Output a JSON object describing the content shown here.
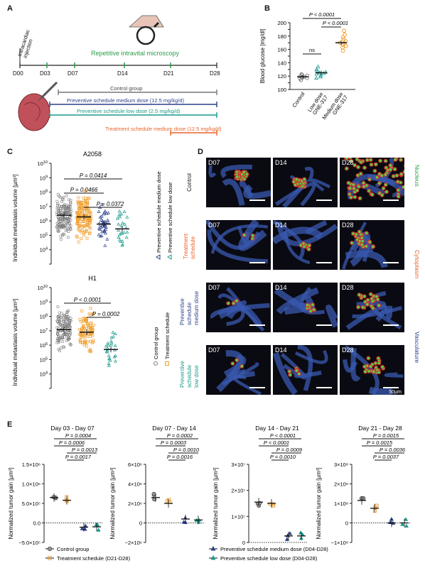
{
  "panels": {
    "a": "A",
    "b": "B",
    "c": "C",
    "d": "D",
    "e": "E"
  },
  "panelA": {
    "intracardiac": "Intracardiac\ninjection",
    "repetitive": "Repetitive intravital microscopy",
    "days": [
      "D00",
      "D03",
      "D07",
      "D14",
      "D21",
      "D28"
    ],
    "control": "Control group",
    "prev_med": "Preventive schedule medium dose (12.5 mg/kg/d)",
    "prev_low": "Preventive schedule low dose (2.5 mg/kg/d)",
    "treat": "Treatment schedule medium dose (12.5 mg/kg/d)"
  },
  "panelB": {
    "ylabel": "Blood glucose [mg/dl]",
    "ticks": [
      "100",
      "110",
      "120",
      "130",
      "140",
      "150",
      "160",
      "170",
      "180",
      "190",
      "200"
    ],
    "cats": [
      "Control",
      "Low dose\nGNE-317",
      "Medium dose\nGNE-317"
    ],
    "p1": "P < 0.0001",
    "p2": "P < 0.0001",
    "ns": "ns",
    "colors": [
      "#777777",
      "#2aa198",
      "#f0a030"
    ]
  },
  "panelC": {
    "ylabel": "Individual metastasis volume [µm³]",
    "a2058": {
      "title": "A2058",
      "p": [
        "P = 0.0414",
        "P = 0.0466",
        "P = 0.0372"
      ]
    },
    "h1": {
      "title": "H1",
      "p": [
        "P < 0.0001",
        "P = 0.0002"
      ]
    },
    "legend": [
      "Control group",
      "Treatment schedule",
      "Preventive schedule medium dose",
      "Preventive schedule low dose"
    ]
  },
  "panelD": {
    "days": [
      "D07",
      "D14",
      "D28"
    ],
    "rows": [
      "Control",
      "Treatment\nschedule",
      "Preventive\nschedule\nmedium dose",
      "Preventive\nschedule\nlow dose"
    ],
    "nucleus": "Nucleus",
    "cytoplasm": "Cytoplasm",
    "vasculature": "Vasculature",
    "scalebar": "50µm"
  },
  "panelE": {
    "ylabel": "Normalized tumor gain [µm³]",
    "plots": [
      {
        "title": "Day 03 - Day 07",
        "p": [
          "P = 0.0004",
          "P = 0.0006",
          "P = 0.0013",
          "P = 0.0017"
        ],
        "ticks": [
          "1.5×10⁶",
          "1.0×10⁶",
          "5.0×10⁵",
          "0.0",
          "−5.0×10⁵"
        ]
      },
      {
        "title": "Day 07 - Day 14",
        "p": [
          "P = 0.0002",
          "P = 0.0003",
          "P = 0.0010",
          "P = 0.0016"
        ],
        "ticks": [
          "6×10⁶",
          "4×10⁶",
          "2×10⁶",
          "0",
          "−2×10⁶"
        ]
      },
      {
        "title": "Day 14 - Day 21",
        "p": [
          "P < 0.0001",
          "P < 0.0001",
          "P = 0.0009",
          "P = 0.0010"
        ],
        "ticks": [
          "3×10⁷",
          "2×10⁷",
          "1×10⁷",
          "0"
        ]
      },
      {
        "title": "Day 21 - Day 28",
        "p": [
          "P = 0.0015",
          "P = 0.0015",
          "P = 0.0036",
          "P = 0.0037"
        ],
        "ticks": [
          "3×10⁸",
          "2×10⁸",
          "1×10⁸",
          "0",
          "−1×10⁸"
        ]
      }
    ],
    "legend": [
      "Control group",
      "Treatment schedule (D21-D28)",
      "Preventive schedule medium dose (D04-D28)",
      "Preventive schedule low dose (D04-D28)"
    ]
  },
  "chart_data": [
    {
      "type": "scatter",
      "title": "",
      "ylabel": "Blood glucose [mg/dl]",
      "categories": [
        "Control",
        "Low dose GNE-317",
        "Medium dose GNE-317"
      ],
      "ylim": [
        100,
        200
      ],
      "series": [
        {
          "values": [
            114,
            116,
            117,
            118,
            119,
            120,
            121,
            122,
            123,
            118
          ]
        },
        {
          "values": [
            117,
            119,
            121,
            123,
            124,
            125,
            126,
            128,
            130,
            134
          ]
        },
        {
          "values": [
            158,
            163,
            165,
            167,
            169,
            170,
            172,
            175,
            178,
            182,
            188
          ]
        }
      ],
      "means": [
        119,
        125,
        170
      ]
    },
    {
      "type": "scatter",
      "title": "A2058",
      "ylabel": "Individual metastasis volume [µm³]",
      "scale": "log",
      "ylim": [
        1000,
        10000000000.0
      ],
      "categories": [
        "Control group",
        "Treatment schedule",
        "Preventive schedule medium dose",
        "Preventive schedule low dose"
      ],
      "medians": [
        2500000.0,
        1900000.0,
        600000.0,
        280000.0
      ]
    },
    {
      "type": "scatter",
      "title": "H1",
      "ylabel": "Individual metastasis volume [µm³]",
      "scale": "log",
      "ylim": [
        1000,
        10000000000.0
      ],
      "categories": [
        "Control group",
        "Treatment schedule",
        "Preventive schedule low dose"
      ],
      "medians": [
        12000000.0,
        8000000.0,
        500000.0
      ]
    },
    {
      "type": "scatter",
      "title": "Day 03 - Day 07",
      "categories": [
        "Control",
        "Treatment",
        "Prev. medium",
        "Prev. low"
      ],
      "means": [
        650000,
        580000,
        -110000,
        -100000
      ],
      "ylim": [
        -500000,
        1500000
      ]
    },
    {
      "type": "scatter",
      "title": "Day 07 - Day 14",
      "categories": [
        "Control",
        "Treatment",
        "Prev. medium",
        "Prev. low"
      ],
      "means": [
        2600000,
        2000000,
        400000,
        300000
      ],
      "ylim": [
        -2000000,
        6000000
      ]
    },
    {
      "type": "scatter",
      "title": "Day 14 - Day 21",
      "categories": [
        "Control",
        "Treatment",
        "Prev. medium",
        "Prev. low"
      ],
      "means": [
        15500000,
        15000000,
        2500000,
        2500000
      ],
      "ylim": [
        0,
        30000000
      ]
    },
    {
      "type": "scatter",
      "title": "Day 21 - Day 28",
      "categories": [
        "Control",
        "Treatment",
        "Prev. medium",
        "Prev. low"
      ],
      "means": [
        115000000,
        75000000,
        0,
        0
      ],
      "ylim": [
        -100000000,
        300000000
      ]
    }
  ]
}
